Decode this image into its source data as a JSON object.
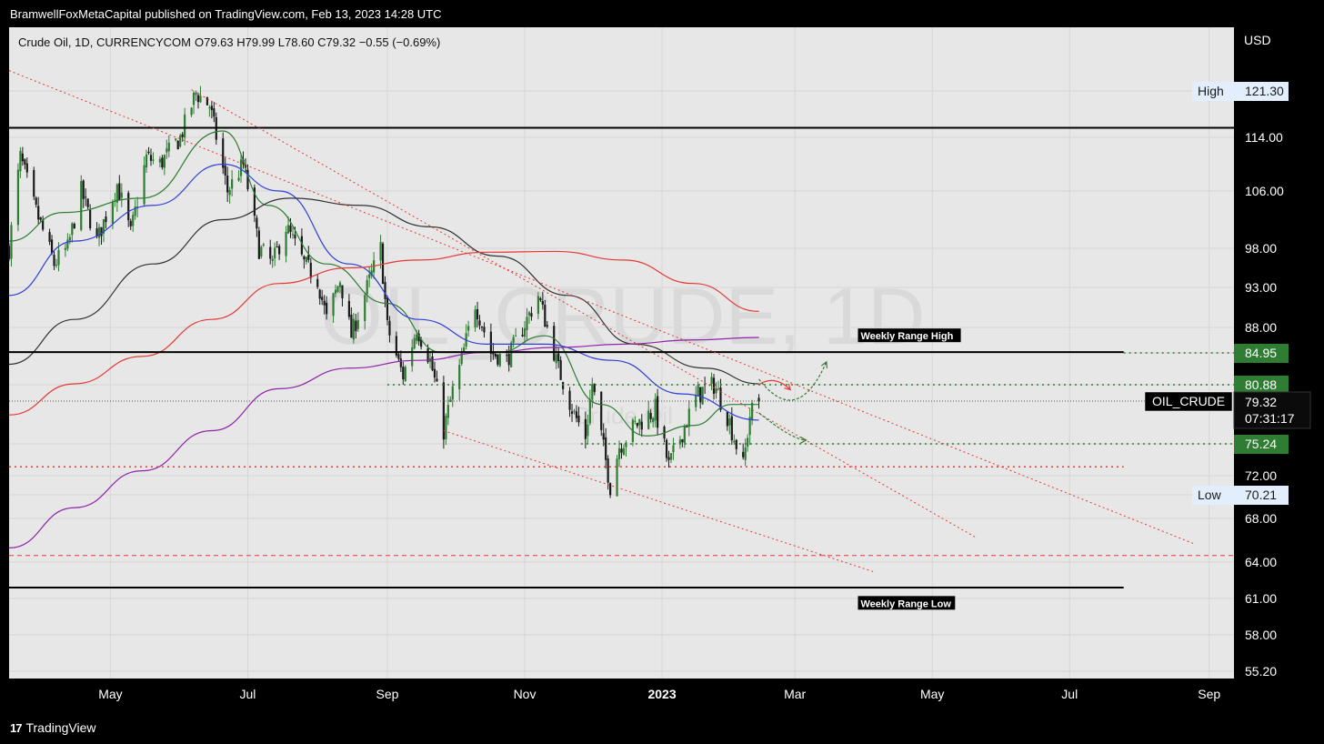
{
  "header": {
    "published": "BramwellFoxMetaCapital published on TradingView.com, Feb 13, 2023 14:28 UTC"
  },
  "legend": {
    "symbol_line": "Crude Oil, 1D, CURRENCYCOM",
    "ohlc": "O79.63  H79.99  L78.60  C79.32  −0.55 (−0.69%)",
    "currency": "USD"
  },
  "watermark": {
    "main": "OIL_CRUDE, 1D",
    "sub": "Crude Oil"
  },
  "footer": {
    "brand": "TradingView"
  },
  "colors": {
    "background": "#e7e7e7",
    "bull": "#2e7d32",
    "bear": "#1a1a1a",
    "sma20": "#2e7d32",
    "sma50": "#2f3fd6",
    "sma100": "#333333",
    "sma200": "#e53935",
    "sma_long": "#8e24aa",
    "green_label": "#2e7d32",
    "red_level": "#e53935"
  },
  "chart_data": {
    "type": "candlestick",
    "ylim": [
      54.5,
      128
    ],
    "y_ticks": [
      "121.30",
      "114.00",
      "106.00",
      "98.00",
      "93.00",
      "88.00",
      "84.95",
      "80.88",
      "75.24",
      "72.00",
      "70.21",
      "68.00",
      "64.00",
      "61.00",
      "58.00",
      "55.20"
    ],
    "y_tick_values": [
      121.3,
      114,
      106,
      98,
      93,
      88,
      84.95,
      80.88,
      75.24,
      72,
      70.21,
      68,
      64,
      61,
      58,
      55.2
    ],
    "x_ticks": [
      {
        "label": "May",
        "date": "2022-05-01"
      },
      {
        "label": "Jul",
        "date": "2022-07-01"
      },
      {
        "label": "Sep",
        "date": "2022-09-01"
      },
      {
        "label": "Nov",
        "date": "2022-11-01"
      },
      {
        "label": "2023",
        "date": "2023-01-01",
        "bold": true
      },
      {
        "label": "Mar",
        "date": "2023-03-01"
      },
      {
        "label": "May",
        "date": "2023-05-01"
      },
      {
        "label": "Jul",
        "date": "2023-07-01"
      },
      {
        "label": "Sep",
        "date": "2023-09-01"
      }
    ],
    "x_range": [
      "2022-03-17",
      "2023-09-12"
    ],
    "last_date": "2023-02-13",
    "price_anchors": [
      [
        "2022-03-17",
        98
      ],
      [
        "2022-03-22",
        111
      ],
      [
        "2022-03-28",
        104
      ],
      [
        "2022-04-06",
        96
      ],
      [
        "2022-04-12",
        98
      ],
      [
        "2022-04-18",
        106
      ],
      [
        "2022-04-25",
        99
      ],
      [
        "2022-05-04",
        107
      ],
      [
        "2022-05-10",
        100
      ],
      [
        "2022-05-17",
        111
      ],
      [
        "2022-05-23",
        110
      ],
      [
        "2022-06-01",
        114
      ],
      [
        "2022-06-08",
        121
      ],
      [
        "2022-06-14",
        119
      ],
      [
        "2022-06-22",
        106
      ],
      [
        "2022-06-29",
        110
      ],
      [
        "2022-07-06",
        98
      ],
      [
        "2022-07-12",
        96
      ],
      [
        "2022-07-18",
        101
      ],
      [
        "2022-07-26",
        96
      ],
      [
        "2022-08-01",
        94
      ],
      [
        "2022-08-05",
        89
      ],
      [
        "2022-08-11",
        94
      ],
      [
        "2022-08-16",
        87
      ],
      [
        "2022-08-23",
        93
      ],
      [
        "2022-08-29",
        98
      ],
      [
        "2022-09-01",
        88
      ],
      [
        "2022-09-08",
        82
      ],
      [
        "2022-09-14",
        88
      ],
      [
        "2022-09-20",
        84
      ],
      [
        "2022-09-26",
        76.5
      ],
      [
        "2022-10-03",
        83
      ],
      [
        "2022-10-10",
        91
      ],
      [
        "2022-10-17",
        85
      ],
      [
        "2022-10-24",
        84
      ],
      [
        "2022-11-02",
        89
      ],
      [
        "2022-11-07",
        92
      ],
      [
        "2022-11-11",
        88
      ],
      [
        "2022-11-17",
        82
      ],
      [
        "2022-11-23",
        78
      ],
      [
        "2022-11-28",
        76
      ],
      [
        "2022-12-01",
        81
      ],
      [
        "2022-12-09",
        71
      ],
      [
        "2022-12-13",
        75
      ],
      [
        "2022-12-20",
        77
      ],
      [
        "2022-12-29",
        78.5
      ],
      [
        "2023-01-04",
        73
      ],
      [
        "2023-01-11",
        77
      ],
      [
        "2023-01-17",
        80
      ],
      [
        "2023-01-24",
        81
      ],
      [
        "2023-01-30",
        78
      ],
      [
        "2023-02-06",
        73
      ],
      [
        "2023-02-09",
        78
      ],
      [
        "2023-02-13",
        79.32
      ]
    ],
    "moving_averages": [
      {
        "name": "SMA20",
        "color": "#2e7d32",
        "points": [
          [
            "2022-03-17",
            99
          ],
          [
            "2022-04-10",
            103
          ],
          [
            "2022-05-15",
            105
          ],
          [
            "2022-06-20",
            115
          ],
          [
            "2022-07-10",
            104
          ],
          [
            "2022-08-05",
            96
          ],
          [
            "2022-09-01",
            91
          ],
          [
            "2022-09-25",
            85
          ],
          [
            "2022-10-20",
            85
          ],
          [
            "2022-11-10",
            87
          ],
          [
            "2022-12-05",
            79
          ],
          [
            "2022-12-25",
            76
          ],
          [
            "2023-01-15",
            77
          ],
          [
            "2023-02-01",
            79
          ],
          [
            "2023-02-13",
            79
          ]
        ]
      },
      {
        "name": "SMA50",
        "color": "#2f3fd6",
        "points": [
          [
            "2022-03-17",
            92
          ],
          [
            "2022-04-15",
            99
          ],
          [
            "2022-05-20",
            104
          ],
          [
            "2022-06-20",
            110
          ],
          [
            "2022-07-15",
            106
          ],
          [
            "2022-08-15",
            96
          ],
          [
            "2022-09-15",
            89
          ],
          [
            "2022-10-15",
            86
          ],
          [
            "2022-11-10",
            86
          ],
          [
            "2022-12-10",
            84
          ],
          [
            "2023-01-10",
            80
          ],
          [
            "2023-02-13",
            77.5
          ]
        ]
      },
      {
        "name": "SMA100",
        "color": "#333333",
        "points": [
          [
            "2022-03-17",
            83.5
          ],
          [
            "2022-04-15",
            89
          ],
          [
            "2022-05-20",
            96
          ],
          [
            "2022-06-20",
            102
          ],
          [
            "2022-07-20",
            105
          ],
          [
            "2022-08-20",
            104
          ],
          [
            "2022-09-20",
            101
          ],
          [
            "2022-10-20",
            97
          ],
          [
            "2022-11-20",
            92
          ],
          [
            "2022-12-20",
            86
          ],
          [
            "2023-01-20",
            83
          ],
          [
            "2023-02-13",
            81
          ]
        ]
      },
      {
        "name": "SMA200",
        "color": "#e53935",
        "points": [
          [
            "2022-03-17",
            78
          ],
          [
            "2022-04-15",
            81
          ],
          [
            "2022-05-15",
            84.5
          ],
          [
            "2022-06-15",
            89
          ],
          [
            "2022-07-15",
            93.5
          ],
          [
            "2022-08-15",
            95.5
          ],
          [
            "2022-09-15",
            96.5
          ],
          [
            "2022-10-15",
            97.5
          ],
          [
            "2022-11-15",
            97.6
          ],
          [
            "2022-12-15",
            96.5
          ],
          [
            "2023-01-15",
            93.5
          ],
          [
            "2023-02-13",
            90
          ]
        ]
      },
      {
        "name": "SMA_LONG",
        "color": "#8e24aa",
        "points": [
          [
            "2022-03-17",
            65.3
          ],
          [
            "2022-04-15",
            69
          ],
          [
            "2022-05-15",
            72.5
          ],
          [
            "2022-06-15",
            76.5
          ],
          [
            "2022-07-15",
            80.5
          ],
          [
            "2022-08-15",
            83
          ],
          [
            "2022-09-15",
            84
          ],
          [
            "2022-10-15",
            85
          ],
          [
            "2022-11-15",
            85.6
          ],
          [
            "2022-12-15",
            86
          ],
          [
            "2023-01-15",
            86.5
          ],
          [
            "2023-02-13",
            86.8
          ]
        ]
      }
    ],
    "horizontal_levels": [
      {
        "name": "weekly-range-high",
        "price": 115.5,
        "from": "2022-03-17",
        "to": "2023-09-12",
        "color": "#000",
        "width": 2,
        "dash": ""
      },
      {
        "name": "weekly-range-high-2",
        "price": 85.05,
        "from": "2022-03-17",
        "to": "2023-07-25",
        "color": "#000",
        "width": 2,
        "dash": ""
      },
      {
        "name": "level-84-95",
        "price": 84.95,
        "from": "2023-07-25",
        "to": "2023-09-12",
        "color": "#2e7d32",
        "width": 1.5,
        "dash": "2,4"
      },
      {
        "name": "level-80-88",
        "price": 80.88,
        "from": "2022-09-01",
        "to": "2023-09-12",
        "color": "#2e7d32",
        "width": 1.5,
        "dash": "2,4"
      },
      {
        "name": "level-75-24",
        "price": 75.24,
        "from": "2022-11-26",
        "to": "2023-09-12",
        "color": "#2e7d32",
        "width": 1.5,
        "dash": "2,4"
      },
      {
        "name": "level-72-9",
        "price": 72.9,
        "from": "2022-03-17",
        "to": "2023-07-25",
        "color": "#e53935",
        "width": 1.5,
        "dash": "2,4"
      },
      {
        "name": "level-64-6",
        "price": 64.6,
        "from": "2022-03-17",
        "to": "2023-09-12",
        "color": "#e53935",
        "width": 1,
        "dash": "5,4"
      },
      {
        "name": "weekly-range-low",
        "price": 61.9,
        "from": "2022-03-17",
        "to": "2023-07-25",
        "color": "#000",
        "width": 2,
        "dash": ""
      },
      {
        "name": "last-price-line",
        "price": 79.32,
        "from": "2022-03-17",
        "to": "2023-09-12",
        "color": "#555",
        "width": 1,
        "dash": "1,2"
      }
    ],
    "trendlines": [
      {
        "name": "trend-upper-outer",
        "from": [
          "2022-03-17",
          124.5
        ],
        "to": [
          "2023-08-25",
          65.7
        ],
        "color": "#e53935"
      },
      {
        "name": "trend-upper-inner",
        "from": [
          "2022-06-06",
          121.5
        ],
        "to": [
          "2023-05-20",
          66.3
        ],
        "color": "#e53935"
      },
      {
        "name": "trend-lower",
        "from": [
          "2022-09-26",
          76.5
        ],
        "to": [
          "2023-04-05",
          63.2
        ],
        "color": "#e53935"
      }
    ],
    "projections": [
      {
        "name": "bear-projection",
        "color": "#e53935",
        "points": [
          [
            "2023-02-13",
            80.9
          ],
          [
            "2023-02-20",
            82.2
          ],
          [
            "2023-02-27",
            80.4
          ]
        ]
      },
      {
        "name": "bull-projection",
        "color": "#2e7d32",
        "points": [
          [
            "2023-02-13",
            78.2
          ],
          [
            "2023-02-28",
            75.6
          ],
          [
            "2023-03-06",
            75.6
          ]
        ]
      },
      {
        "name": "bull-projection-2",
        "color": "#2e7d32",
        "points": [
          [
            "2023-02-13",
            81.6
          ],
          [
            "2023-03-02",
            76.7
          ],
          [
            "2023-03-15",
            83.8
          ]
        ]
      }
    ],
    "labels": [
      {
        "name": "weekly-range-high-label",
        "text": "Weekly Range High",
        "date": "2023-03-29",
        "price": 87.0
      },
      {
        "name": "weekly-range-low-label",
        "text": "Weekly Range Low",
        "date": "2023-03-29",
        "price": 60.6
      }
    ],
    "price_axis_labels": [
      {
        "name": "high-label",
        "prefix": "High",
        "text": "121.30",
        "price": 121.3,
        "style": "light"
      },
      {
        "name": "level-84-95-label",
        "text": "84.95",
        "price": 84.95,
        "style": "green"
      },
      {
        "name": "level-80-88-label",
        "text": "80.88",
        "price": 80.88,
        "style": "green"
      },
      {
        "name": "last-price-label",
        "text": "79.32",
        "sub": "07:31:17",
        "price": 79.32,
        "style": "black",
        "tag": "OIL_CRUDE"
      },
      {
        "name": "level-75-24-label",
        "text": "75.24",
        "price": 75.24,
        "style": "green"
      },
      {
        "name": "low-label",
        "prefix": "Low",
        "text": "70.21",
        "price": 70.21,
        "style": "light"
      }
    ]
  }
}
